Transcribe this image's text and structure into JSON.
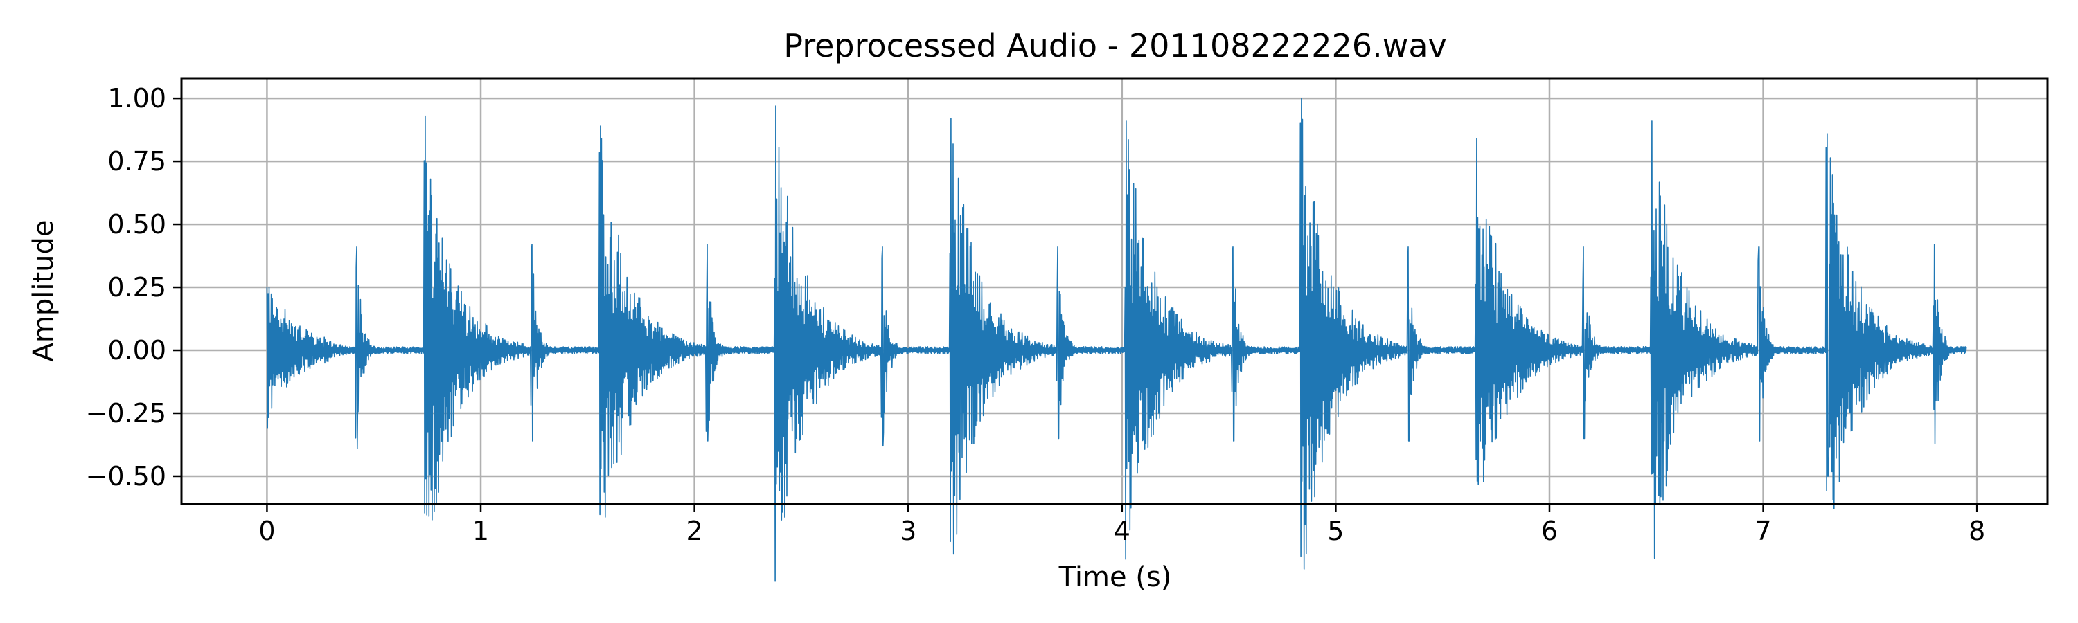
{
  "chart_data": {
    "type": "line",
    "title": "Preprocessed Audio - 201108222226.wav",
    "xlabel": "Time (s)",
    "ylabel": "Amplitude",
    "xlim": [
      -0.4,
      8.33
    ],
    "ylim": [
      -0.61,
      1.08
    ],
    "grid": true,
    "legend": "none",
    "x_ticks": [
      0,
      1,
      2,
      3,
      4,
      5,
      6,
      7,
      8
    ],
    "x_tick_labels": [
      "0",
      "1",
      "2",
      "3",
      "4",
      "5",
      "6",
      "7",
      "8"
    ],
    "y_ticks": [
      1.0,
      0.75,
      0.5,
      0.25,
      0.0,
      -0.25,
      -0.5
    ],
    "y_tick_labels": [
      "1.00",
      "0.75",
      "0.50",
      "0.25",
      "0.00",
      "−0.25",
      "−0.50"
    ],
    "color": "#1f77b4",
    "series": [
      {
        "duration": 7.95,
        "noise_floor": 0.012,
        "events": [
          {
            "t": 0.0,
            "pos": 0.25,
            "neg": -0.31,
            "decay": 0.13,
            "tail": 0.16
          },
          {
            "t": 0.42,
            "pos": 0.41,
            "neg": -0.39,
            "decay": 0.025,
            "tail": 0.0
          },
          {
            "t": 0.74,
            "pos": 0.93,
            "neg": -0.51,
            "decay": 0.13,
            "tail": 0.25
          },
          {
            "t": 1.24,
            "pos": 0.42,
            "neg": -0.36,
            "decay": 0.025,
            "tail": 0.0
          },
          {
            "t": 1.56,
            "pos": 0.89,
            "neg": -0.47,
            "decay": 0.13,
            "tail": 0.26
          },
          {
            "t": 2.06,
            "pos": 0.42,
            "neg": -0.36,
            "decay": 0.025,
            "tail": 0.0
          },
          {
            "t": 2.38,
            "pos": 0.97,
            "neg": -0.53,
            "decay": 0.13,
            "tail": 0.25
          },
          {
            "t": 2.88,
            "pos": 0.41,
            "neg": -0.38,
            "decay": 0.025,
            "tail": 0.0
          },
          {
            "t": 3.2,
            "pos": 0.92,
            "neg": -0.48,
            "decay": 0.13,
            "tail": 0.25
          },
          {
            "t": 3.7,
            "pos": 0.41,
            "neg": -0.35,
            "decay": 0.025,
            "tail": 0.0
          },
          {
            "t": 4.02,
            "pos": 0.91,
            "neg": -0.47,
            "decay": 0.13,
            "tail": 0.26
          },
          {
            "t": 4.52,
            "pos": 0.41,
            "neg": -0.36,
            "decay": 0.025,
            "tail": 0.0
          },
          {
            "t": 4.84,
            "pos": 1.0,
            "neg": -0.52,
            "decay": 0.13,
            "tail": 0.27
          },
          {
            "t": 5.34,
            "pos": 0.41,
            "neg": -0.36,
            "decay": 0.025,
            "tail": 0.0
          },
          {
            "t": 5.66,
            "pos": 0.84,
            "neg": -0.52,
            "decay": 0.13,
            "tail": 0.25
          },
          {
            "t": 6.16,
            "pos": 0.41,
            "neg": -0.35,
            "decay": 0.025,
            "tail": 0.0
          },
          {
            "t": 6.48,
            "pos": 0.91,
            "neg": -0.49,
            "decay": 0.13,
            "tail": 0.25
          },
          {
            "t": 6.98,
            "pos": 0.41,
            "neg": -0.36,
            "decay": 0.025,
            "tail": 0.0
          },
          {
            "t": 7.3,
            "pos": 0.86,
            "neg": -0.5,
            "decay": 0.13,
            "tail": 0.24
          },
          {
            "t": 7.8,
            "pos": 0.42,
            "neg": -0.37,
            "decay": 0.025,
            "tail": 0.0
          }
        ]
      }
    ]
  }
}
